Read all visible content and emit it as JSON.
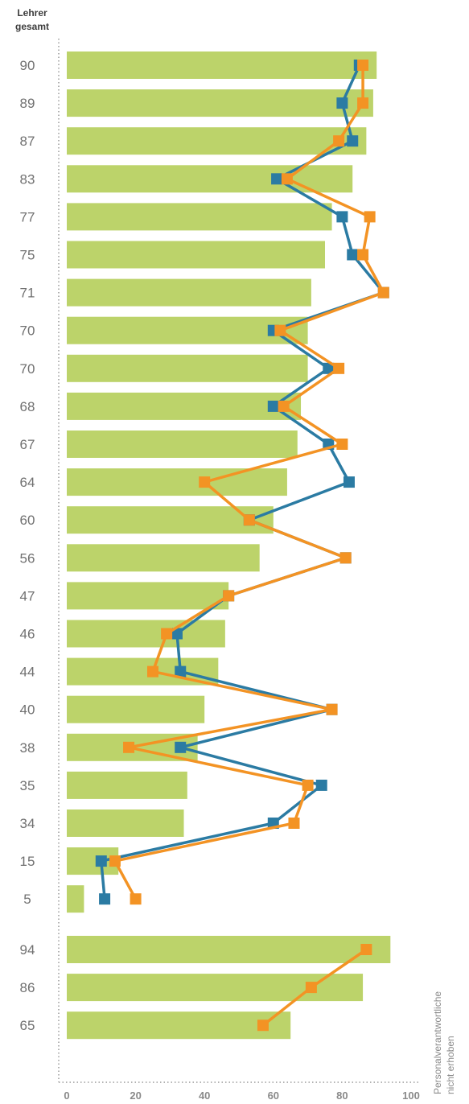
{
  "header": {
    "line1": "Lehrer",
    "line2": "gesamt"
  },
  "note": {
    "line1": "Personalverantwortliche",
    "line2": "nicht erhoben"
  },
  "colors": {
    "bar": "#bcd36a",
    "teal": "#2b7ba3",
    "orange": "#f39324",
    "text": "#707070",
    "axis": "#999999"
  },
  "chart_data": {
    "type": "bar",
    "orientation": "horizontal",
    "xlim": [
      0,
      100
    ],
    "xticks": [
      0,
      20,
      40,
      60,
      80,
      100
    ],
    "groups": [
      {
        "categories": [
          "90",
          "89",
          "87",
          "83",
          "77",
          "75",
          "71",
          "70",
          "70",
          "68",
          "67",
          "64",
          "60",
          "56",
          "47",
          "46",
          "44",
          "40",
          "38",
          "35",
          "34",
          "15",
          "5"
        ],
        "bar_values": [
          90,
          89,
          87,
          83,
          77,
          75,
          71,
          70,
          70,
          68,
          67,
          64,
          60,
          56,
          47,
          46,
          44,
          40,
          38,
          35,
          34,
          15,
          5
        ],
        "series": [
          {
            "name": "teal",
            "color": "#2b7ba3",
            "values": [
              85,
              80,
              83,
              61,
              80,
              83,
              92,
              60,
              76,
              60,
              76,
              82,
              53,
              81,
              47,
              32,
              33,
              77,
              33,
              74,
              60,
              10,
              11
            ]
          },
          {
            "name": "orange",
            "color": "#f39324",
            "values": [
              86,
              86,
              79,
              64,
              88,
              86,
              92,
              62,
              79,
              63,
              80,
              40,
              53,
              81,
              47,
              29,
              25,
              77,
              18,
              70,
              66,
              14,
              20
            ]
          }
        ]
      },
      {
        "categories": [
          "94",
          "86",
          "65"
        ],
        "bar_values": [
          94,
          86,
          65
        ],
        "series": [
          {
            "name": "orange",
            "color": "#f39324",
            "values": [
              87,
              71,
              57
            ]
          }
        ]
      }
    ]
  }
}
